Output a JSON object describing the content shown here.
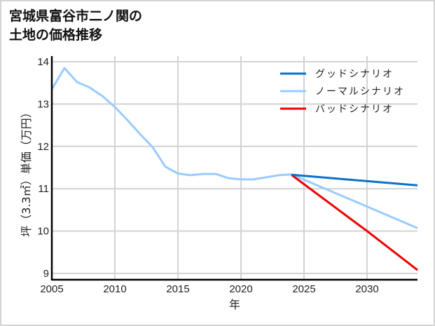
{
  "title": {
    "line1": "宮城県富谷市二ノ関の",
    "line2": "土地の価格推移"
  },
  "chart_data": {
    "type": "line",
    "title": "宮城県富谷市二ノ関の土地の価格推移",
    "xlabel": "年",
    "ylabel": "坪（3.3㎡）単価（万円）",
    "xlim": [
      2005,
      2034
    ],
    "ylim": [
      8.85,
      14.05
    ],
    "xticks": [
      2005,
      2010,
      2015,
      2020,
      2025,
      2030
    ],
    "yticks": [
      9,
      10,
      11,
      12,
      13,
      14
    ],
    "grid": true,
    "legend_position": "upper right",
    "series": [
      {
        "name": "グッドシナリオ",
        "color": "#0a72c8",
        "x": [
          2024,
          2034
        ],
        "values": [
          11.33,
          11.08
        ]
      },
      {
        "name": "ノーマルシナリオ",
        "color": "#99ccff",
        "x": [
          2005,
          2006,
          2007,
          2008,
          2009,
          2010,
          2011,
          2012,
          2013,
          2014,
          2015,
          2016,
          2017,
          2018,
          2019,
          2020,
          2021,
          2022,
          2023,
          2024,
          2030,
          2034
        ],
        "values": [
          13.35,
          13.85,
          13.52,
          13.39,
          13.19,
          12.93,
          12.62,
          12.29,
          11.98,
          11.52,
          11.36,
          11.32,
          11.35,
          11.35,
          11.25,
          11.22,
          11.22,
          11.27,
          11.32,
          11.34,
          10.58,
          10.07
        ]
      },
      {
        "name": "バッドシナリオ",
        "color": "#ee0000",
        "x": [
          2024,
          2030,
          2034
        ],
        "values": [
          11.33,
          10.0,
          9.08
        ]
      }
    ]
  }
}
